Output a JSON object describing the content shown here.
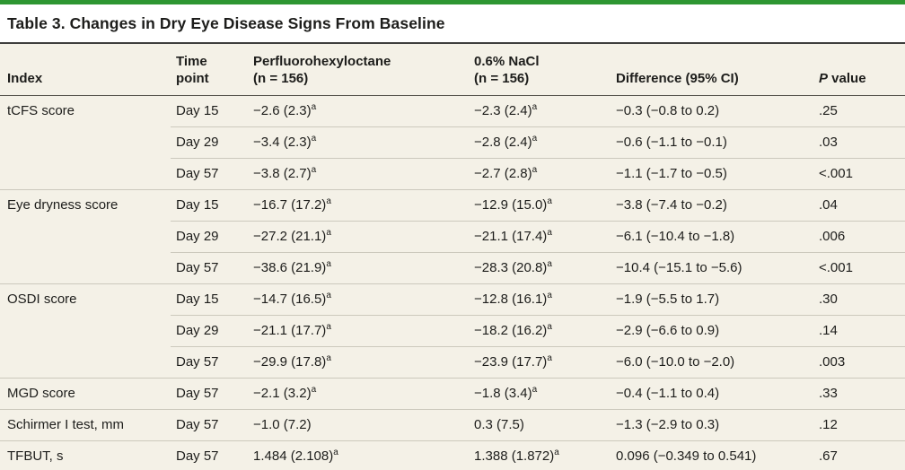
{
  "accent_color": "#2e9632",
  "background_beige": "#f4f1e7",
  "rule_dark": "#3f3f3d",
  "table": {
    "title": "Table 3. Changes in Dry Eye Disease Signs From Baseline",
    "headers": {
      "index": "Index",
      "time": "Time\npoint",
      "pfho": "Perfluorohexyloctane\n(n = 156)",
      "nacl": "0.6% NaCl\n(n = 156)",
      "difference": "Difference (95% CI)",
      "p_italic": "P",
      "p_rest": " value"
    },
    "rows": [
      {
        "group_start": true,
        "index": "tCFS score",
        "time": "Day 15",
        "pfho": "−2.6 (2.3)",
        "pfho_sup": "a",
        "nacl": "−2.3 (2.4)",
        "nacl_sup": "a",
        "diff": "−0.3 (−0.8 to 0.2)",
        "p": ".25"
      },
      {
        "group_start": false,
        "index": "",
        "time": "Day 29",
        "pfho": "−3.4 (2.3)",
        "pfho_sup": "a",
        "nacl": "−2.8 (2.4)",
        "nacl_sup": "a",
        "diff": "−0.6 (−1.1 to −0.1)",
        "p": ".03"
      },
      {
        "group_start": false,
        "index": "",
        "time": "Day 57",
        "pfho": "−3.8 (2.7)",
        "pfho_sup": "a",
        "nacl": "−2.7 (2.8)",
        "nacl_sup": "a",
        "diff": "−1.1 (−1.7 to −0.5)",
        "p": "<.001"
      },
      {
        "group_start": true,
        "index": "Eye dryness score",
        "time": "Day 15",
        "pfho": "−16.7 (17.2)",
        "pfho_sup": "a",
        "nacl": "−12.9 (15.0)",
        "nacl_sup": "a",
        "diff": "−3.8 (−7.4 to −0.2)",
        "p": ".04"
      },
      {
        "group_start": false,
        "index": "",
        "time": "Day 29",
        "pfho": "−27.2 (21.1)",
        "pfho_sup": "a",
        "nacl": "−21.1 (17.4)",
        "nacl_sup": "a",
        "diff": "−6.1 (−10.4 to −1.8)",
        "p": ".006"
      },
      {
        "group_start": false,
        "index": "",
        "time": "Day 57",
        "pfho": "−38.6 (21.9)",
        "pfho_sup": "a",
        "nacl": "−28.3 (20.8)",
        "nacl_sup": "a",
        "diff": "−10.4 (−15.1 to −5.6)",
        "p": "<.001"
      },
      {
        "group_start": true,
        "index": "OSDI score",
        "time": "Day 15",
        "pfho": "−14.7 (16.5)",
        "pfho_sup": "a",
        "nacl": "−12.8 (16.1)",
        "nacl_sup": "a",
        "diff": "−1.9 (−5.5 to 1.7)",
        "p": ".30"
      },
      {
        "group_start": false,
        "index": "",
        "time": "Day 29",
        "pfho": "−21.1 (17.7)",
        "pfho_sup": "a",
        "nacl": "−18.2 (16.2)",
        "nacl_sup": "a",
        "diff": "−2.9 (−6.6 to 0.9)",
        "p": ".14"
      },
      {
        "group_start": false,
        "index": "",
        "time": "Day 57",
        "pfho": "−29.9 (17.8)",
        "pfho_sup": "a",
        "nacl": "−23.9 (17.7)",
        "nacl_sup": "a",
        "diff": "−6.0 (−10.0 to −2.0)",
        "p": ".003"
      },
      {
        "group_start": true,
        "index": "MGD score",
        "time": "Day 57",
        "pfho": "−2.1 (3.2)",
        "pfho_sup": "a",
        "nacl": "−1.8 (3.4)",
        "nacl_sup": "a",
        "diff": "−0.4 (−1.1 to 0.4)",
        "p": ".33"
      },
      {
        "group_start": true,
        "index": "Schirmer I test, mm",
        "time": "Day 57",
        "pfho": "−1.0 (7.2)",
        "pfho_sup": "",
        "nacl": "0.3 (7.5)",
        "nacl_sup": "",
        "diff": "−1.3 (−2.9 to 0.3)",
        "p": ".12"
      },
      {
        "group_start": true,
        "index": "TFBUT, s",
        "time": "Day 57",
        "pfho": "1.484 (2.108)",
        "pfho_sup": "a",
        "nacl": "1.388 (1.872)",
        "nacl_sup": "a",
        "diff": "0.096 (−0.349 to 0.541)",
        "p": ".67"
      }
    ]
  }
}
